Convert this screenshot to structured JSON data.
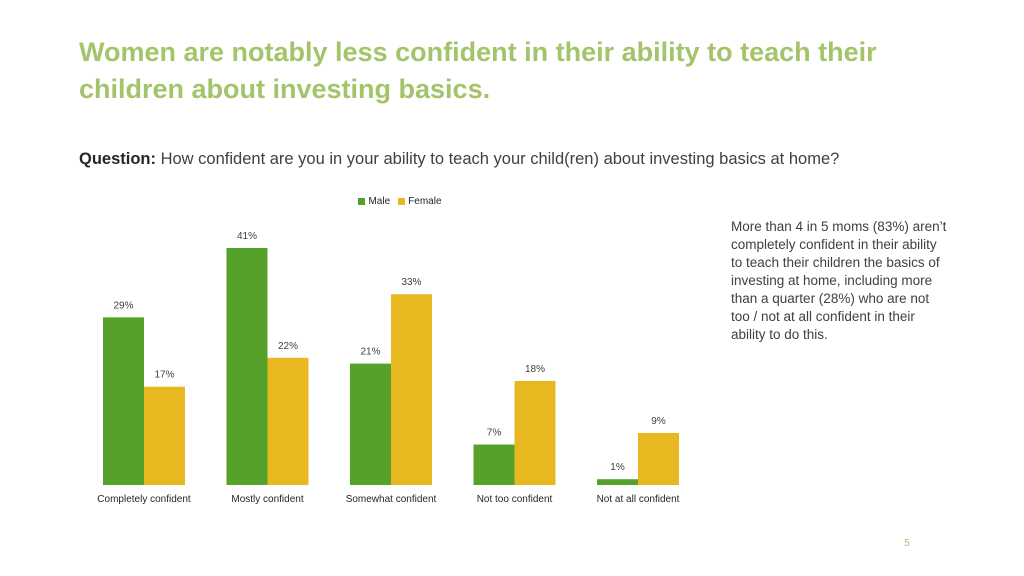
{
  "slide": {
    "title": "Women are notably less confident in their ability to teach their children about investing basics.",
    "question_label": "Question:",
    "question_text": "How confident are you in your ability to teach your child(ren) about investing basics at home?",
    "note": "More than 4 in 5 moms (83%) aren’t completely confident in their ability to teach their children the basics of investing at home, including more than a quarter (28%) who are not too / not at all confident in their ability to do this.",
    "page_number": "5"
  },
  "colors": {
    "title": "#a4c46a",
    "male": "#55a12a",
    "female": "#e8b820"
  },
  "chart_data": {
    "type": "bar",
    "categories": [
      "Completely confident",
      "Mostly confident",
      "Somewhat confident",
      "Not too confident",
      "Not at all confident"
    ],
    "series": [
      {
        "name": "Male",
        "values": [
          29,
          41,
          21,
          7,
          1
        ]
      },
      {
        "name": "Female",
        "values": [
          17,
          22,
          33,
          18,
          9
        ]
      }
    ],
    "value_suffix": "%",
    "ylim": [
      0,
      41
    ],
    "legend": "top",
    "grid": false
  }
}
